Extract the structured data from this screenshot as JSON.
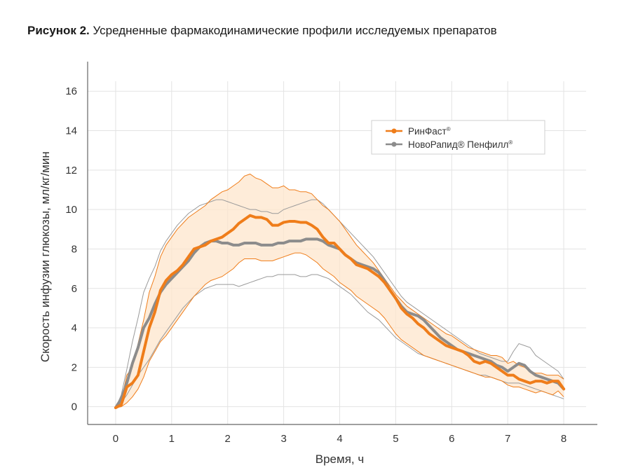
{
  "caption": {
    "lead": "Рисунок 2.",
    "text": "Усредненные фармакодинамические профили исследуемых препаратов"
  },
  "colors": {
    "rinfast": "#ef7d1a",
    "rinfast_band": "#fde6cc",
    "novorapid": "#8c8c8c",
    "grid": "#e3e3e3",
    "axis": "#666666"
  },
  "legend": {
    "placement": "top-right",
    "items": [
      {
        "series": "rinfast",
        "text": "РинФаст",
        "mark": "®"
      },
      {
        "series": "novorapid",
        "text": "НовоРапид® Пенфилл",
        "mark": "®"
      }
    ]
  },
  "chart_data": {
    "type": "line",
    "xlabel": "Время, ч",
    "ylabel": "Скорость инфузии глюкозы, мл/кг/мин",
    "xlim": [
      -0.5,
      8.6
    ],
    "ylim": [
      -0.9,
      17.5
    ],
    "xticks": [
      0,
      1,
      2,
      3,
      4,
      5,
      6,
      7,
      8
    ],
    "yticks": [
      0,
      2,
      4,
      6,
      8,
      10,
      12,
      14,
      16
    ],
    "grid": true,
    "x": [
      0,
      0.1,
      0.2,
      0.3,
      0.4,
      0.5,
      0.6,
      0.7,
      0.8,
      0.9,
      1.0,
      1.1,
      1.2,
      1.3,
      1.4,
      1.5,
      1.6,
      1.7,
      1.8,
      1.9,
      2.0,
      2.1,
      2.2,
      2.3,
      2.4,
      2.5,
      2.6,
      2.7,
      2.8,
      2.9,
      3.0,
      3.1,
      3.2,
      3.3,
      3.4,
      3.5,
      3.6,
      3.7,
      3.8,
      3.9,
      4.0,
      4.1,
      4.2,
      4.3,
      4.4,
      4.5,
      4.6,
      4.7,
      4.8,
      4.9,
      5.0,
      5.1,
      5.2,
      5.3,
      5.4,
      5.5,
      5.6,
      5.7,
      5.8,
      5.9,
      6.0,
      6.1,
      6.2,
      6.3,
      6.4,
      6.5,
      6.6,
      6.7,
      6.8,
      6.9,
      7.0,
      7.1,
      7.2,
      7.3,
      7.4,
      7.5,
      7.6,
      7.7,
      7.8,
      7.9,
      8.0
    ],
    "series": [
      {
        "name": "РинФаст®",
        "key": "rinfast",
        "values": [
          -0.05,
          0.1,
          1.0,
          1.2,
          1.6,
          2.8,
          4.0,
          4.8,
          5.9,
          6.4,
          6.7,
          6.9,
          7.2,
          7.6,
          8.0,
          8.1,
          8.2,
          8.4,
          8.5,
          8.6,
          8.8,
          9.0,
          9.3,
          9.5,
          9.7,
          9.6,
          9.6,
          9.5,
          9.2,
          9.2,
          9.35,
          9.4,
          9.4,
          9.35,
          9.35,
          9.2,
          9.0,
          8.6,
          8.3,
          8.3,
          8.0,
          7.7,
          7.5,
          7.2,
          7.1,
          7.0,
          6.8,
          6.6,
          6.3,
          5.9,
          5.5,
          5.0,
          4.7,
          4.5,
          4.2,
          4.0,
          3.7,
          3.5,
          3.3,
          3.1,
          3.0,
          2.9,
          2.8,
          2.6,
          2.3,
          2.2,
          2.3,
          2.2,
          2.0,
          1.8,
          1.6,
          1.6,
          1.4,
          1.3,
          1.2,
          1.3,
          1.3,
          1.2,
          1.3,
          1.3,
          0.9
        ],
        "lower": [
          -0.05,
          0.0,
          0.2,
          0.5,
          0.9,
          1.5,
          2.3,
          2.8,
          3.3,
          3.6,
          4.0,
          4.4,
          4.8,
          5.2,
          5.6,
          5.9,
          6.2,
          6.4,
          6.5,
          6.6,
          6.8,
          7.0,
          7.3,
          7.5,
          7.5,
          7.5,
          7.4,
          7.4,
          7.4,
          7.5,
          7.6,
          7.7,
          7.8,
          7.8,
          7.7,
          7.5,
          7.3,
          7.0,
          6.8,
          6.6,
          6.3,
          6.1,
          5.9,
          5.6,
          5.4,
          5.2,
          5.0,
          4.8,
          4.5,
          4.1,
          3.7,
          3.4,
          3.2,
          3.0,
          2.8,
          2.6,
          2.5,
          2.4,
          2.3,
          2.2,
          2.1,
          2.0,
          1.9,
          1.8,
          1.7,
          1.6,
          1.5,
          1.5,
          1.4,
          1.3,
          1.1,
          1.0,
          1.0,
          0.9,
          0.8,
          0.7,
          0.8,
          0.7,
          0.6,
          0.8,
          0.5
        ],
        "upper": [
          -0.05,
          0.3,
          1.6,
          2.0,
          3.2,
          4.4,
          5.8,
          6.6,
          7.6,
          8.2,
          8.6,
          9.0,
          9.3,
          9.6,
          9.8,
          10.0,
          10.2,
          10.5,
          10.7,
          10.9,
          11.0,
          11.2,
          11.4,
          11.7,
          11.8,
          11.6,
          11.5,
          11.3,
          11.1,
          11.1,
          11.2,
          11.0,
          11.0,
          10.9,
          10.9,
          10.8,
          10.5,
          10.2,
          10.0,
          9.7,
          9.4,
          9.0,
          8.6,
          8.2,
          7.9,
          7.6,
          7.3,
          6.9,
          6.5,
          6.1,
          5.7,
          5.4,
          5.1,
          4.9,
          4.7,
          4.5,
          4.3,
          4.1,
          3.9,
          3.7,
          3.6,
          3.4,
          3.2,
          3.0,
          2.9,
          2.8,
          2.7,
          2.6,
          2.6,
          2.5,
          2.2,
          2.3,
          2.1,
          2.0,
          1.8,
          1.7,
          1.7,
          1.6,
          1.6,
          1.6,
          1.4
        ]
      },
      {
        "name": "НовоРапид® Пенфилл®",
        "key": "novorapid",
        "values": [
          -0.05,
          0.4,
          1.2,
          2.2,
          3.0,
          4.0,
          4.5,
          5.2,
          5.8,
          6.2,
          6.5,
          6.8,
          7.1,
          7.4,
          7.8,
          8.1,
          8.3,
          8.4,
          8.4,
          8.3,
          8.3,
          8.2,
          8.2,
          8.3,
          8.3,
          8.3,
          8.2,
          8.2,
          8.2,
          8.3,
          8.3,
          8.4,
          8.4,
          8.4,
          8.5,
          8.5,
          8.5,
          8.4,
          8.2,
          8.1,
          8.0,
          7.7,
          7.5,
          7.3,
          7.2,
          7.1,
          7.0,
          6.8,
          6.4,
          5.9,
          5.5,
          5.1,
          4.8,
          4.7,
          4.6,
          4.4,
          4.1,
          3.8,
          3.5,
          3.3,
          3.1,
          2.9,
          2.8,
          2.7,
          2.6,
          2.5,
          2.4,
          2.3,
          2.1,
          2.0,
          1.8,
          2.0,
          2.2,
          2.1,
          1.8,
          1.6,
          1.5,
          1.4,
          1.3,
          1.2,
          0.9
        ],
        "lower": [
          -0.05,
          0.2,
          0.6,
          1.1,
          1.6,
          2.0,
          2.4,
          2.9,
          3.4,
          3.8,
          4.2,
          4.6,
          5.0,
          5.3,
          5.6,
          5.8,
          6.0,
          6.1,
          6.2,
          6.2,
          6.2,
          6.2,
          6.1,
          6.2,
          6.3,
          6.4,
          6.5,
          6.6,
          6.6,
          6.7,
          6.7,
          6.7,
          6.7,
          6.6,
          6.6,
          6.7,
          6.7,
          6.6,
          6.5,
          6.3,
          6.1,
          5.9,
          5.7,
          5.4,
          5.1,
          4.8,
          4.6,
          4.4,
          4.1,
          3.8,
          3.5,
          3.3,
          3.1,
          2.9,
          2.7,
          2.6,
          2.5,
          2.4,
          2.3,
          2.2,
          2.1,
          2.0,
          1.9,
          1.8,
          1.7,
          1.6,
          1.6,
          1.5,
          1.4,
          1.3,
          1.2,
          1.2,
          1.2,
          1.1,
          1.0,
          0.9,
          0.8,
          0.7,
          0.6,
          0.5,
          0.4
        ],
        "upper": [
          -0.05,
          0.6,
          1.9,
          3.3,
          4.5,
          5.8,
          6.5,
          7.1,
          7.9,
          8.4,
          8.8,
          9.2,
          9.5,
          9.8,
          10.0,
          10.2,
          10.3,
          10.4,
          10.5,
          10.5,
          10.4,
          10.3,
          10.2,
          10.1,
          10.0,
          10.0,
          9.9,
          9.9,
          9.8,
          9.8,
          10.0,
          10.1,
          10.2,
          10.3,
          10.4,
          10.5,
          10.5,
          10.3,
          10.0,
          9.7,
          9.4,
          9.1,
          8.8,
          8.5,
          8.2,
          7.9,
          7.6,
          7.2,
          6.8,
          6.4,
          6.0,
          5.6,
          5.3,
          5.1,
          4.9,
          4.7,
          4.5,
          4.3,
          4.1,
          3.9,
          3.7,
          3.5,
          3.3,
          3.1,
          2.9,
          2.7,
          2.6,
          2.5,
          2.4,
          2.3,
          2.3,
          2.8,
          3.2,
          3.1,
          3.0,
          2.6,
          2.4,
          2.2,
          2.0,
          1.8,
          1.4
        ]
      }
    ]
  }
}
